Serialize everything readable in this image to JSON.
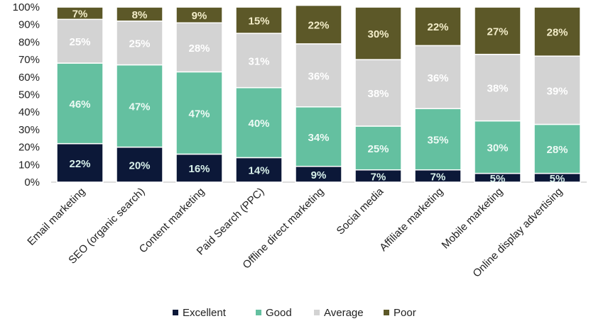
{
  "chart_data": {
    "type": "bar",
    "stacked": true,
    "categories": [
      "Email marketing",
      "SEO (organic search)",
      "Content marketing",
      "Paid Search (PPC)",
      "Offline direct marketing",
      "Social media",
      "Affiliate marketing",
      "Mobile marketing",
      "Online display advertising"
    ],
    "series": [
      {
        "name": "Excellent",
        "color": "#0c1838",
        "values": [
          22,
          20,
          16,
          14,
          9,
          7,
          7,
          5,
          5
        ]
      },
      {
        "name": "Good",
        "color": "#64c0a0",
        "values": [
          46,
          47,
          47,
          40,
          34,
          25,
          35,
          30,
          28
        ]
      },
      {
        "name": "Average",
        "color": "#d3d3d3",
        "values": [
          25,
          25,
          28,
          31,
          36,
          38,
          36,
          38,
          39
        ]
      },
      {
        "name": "Poor",
        "color": "#5c5828",
        "values": [
          7,
          8,
          9,
          15,
          22,
          30,
          22,
          27,
          28
        ]
      }
    ],
    "ylim": [
      0,
      100
    ],
    "yticks": [
      "0%",
      "10%",
      "20%",
      "30%",
      "40%",
      "50%",
      "60%",
      "70%",
      "80%",
      "90%",
      "100%"
    ],
    "value_suffix": "%",
    "legend_position": "bottom",
    "grid": false
  }
}
